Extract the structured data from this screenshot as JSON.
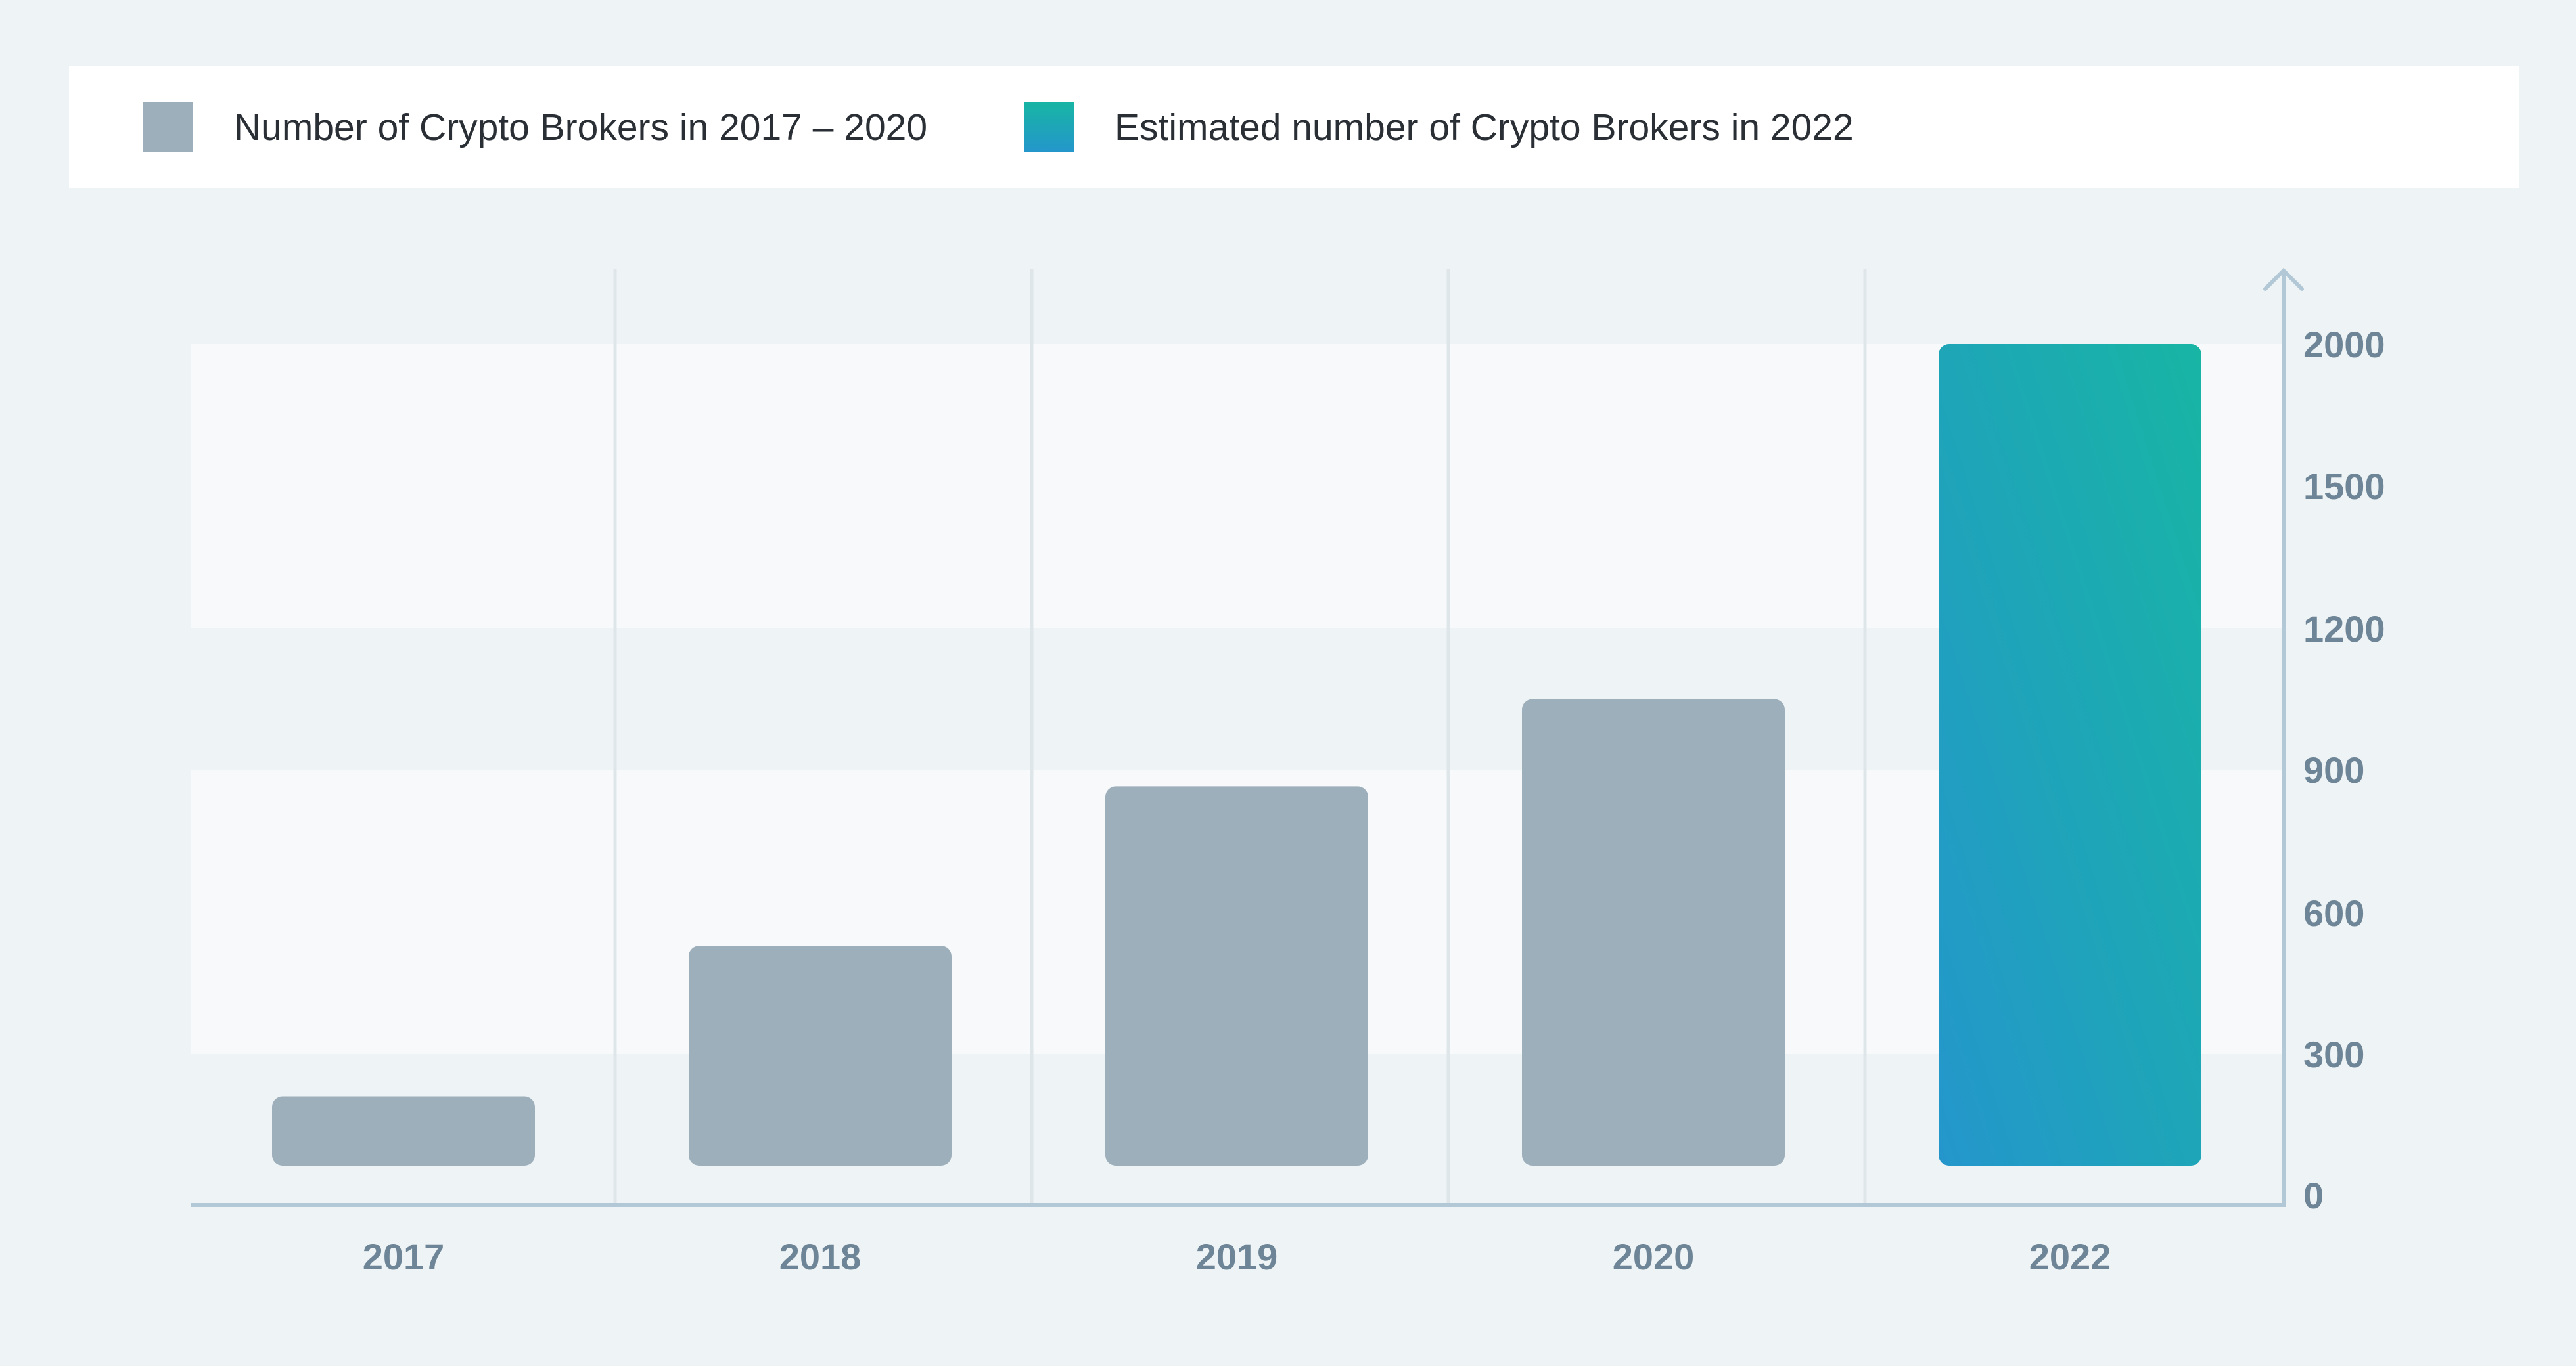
{
  "legend": {
    "items": [
      {
        "label": "Number of Crypto Brokers in 2017 – 2020",
        "color": "#9eafbc"
      },
      {
        "label": "Estimated number of Crypto Brokers in 2022",
        "color": "#1ab0a8"
      }
    ]
  },
  "chart_data": {
    "type": "bar",
    "categories": [
      "2017",
      "2018",
      "2019",
      "2020",
      "2022"
    ],
    "values": [
      210,
      530,
      865,
      1050,
      2000
    ],
    "estimated": [
      false,
      false,
      false,
      false,
      true
    ],
    "y_ticks": [
      0,
      300,
      600,
      900,
      1200,
      1500,
      2000
    ],
    "ylim": [
      0,
      2000
    ],
    "y_axis_position": "right",
    "colors": {
      "actual": "#9eafbc",
      "estimated_start": "#2496cc",
      "estimated_end": "#18b5a4",
      "axis": "#b3c8d6",
      "band_light": "#f7f9fa",
      "band_dark": "#eef3f5"
    },
    "title": "",
    "xlabel": "",
    "ylabel": ""
  }
}
